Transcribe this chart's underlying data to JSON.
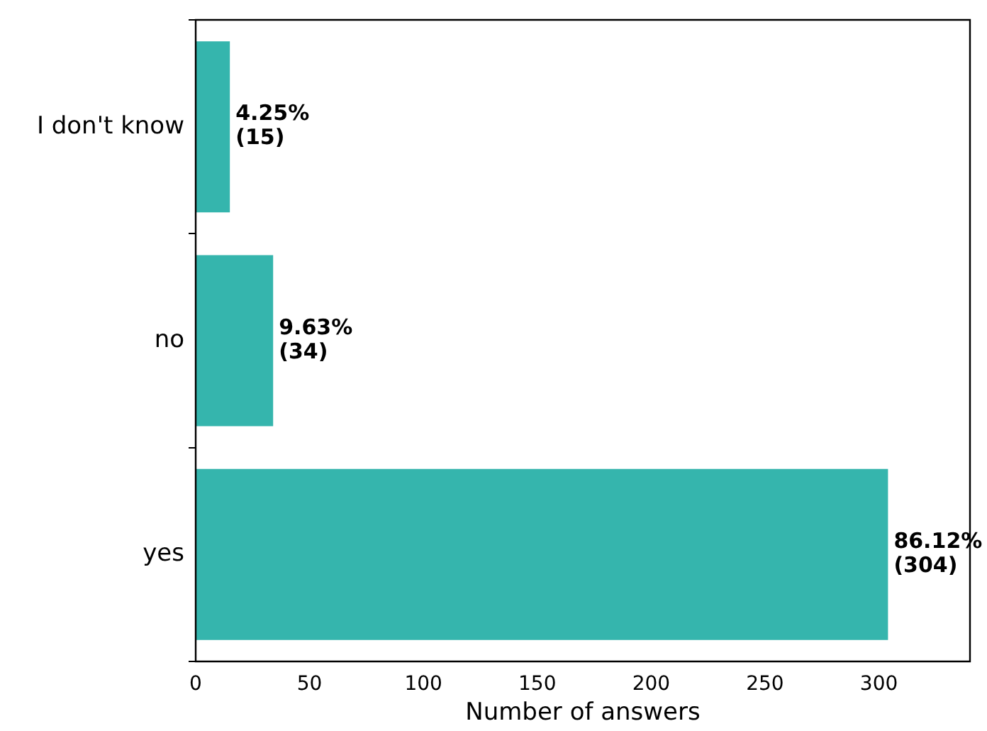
{
  "chart_data": {
    "type": "bar",
    "orientation": "horizontal",
    "xlabel": "Number of answers",
    "categories": [
      "I don't know",
      "no",
      "yes"
    ],
    "values": [
      15,
      34,
      304
    ],
    "color": "#35b5ad",
    "value_labels": [
      "4.25%\n(15)",
      "9.63%\n(34)",
      "86.12%\n(304)"
    ],
    "xlim": [
      0,
      340
    ],
    "xticks": [
      0,
      50,
      100,
      150,
      200,
      250,
      300
    ],
    "grid": false,
    "legend": false
  }
}
